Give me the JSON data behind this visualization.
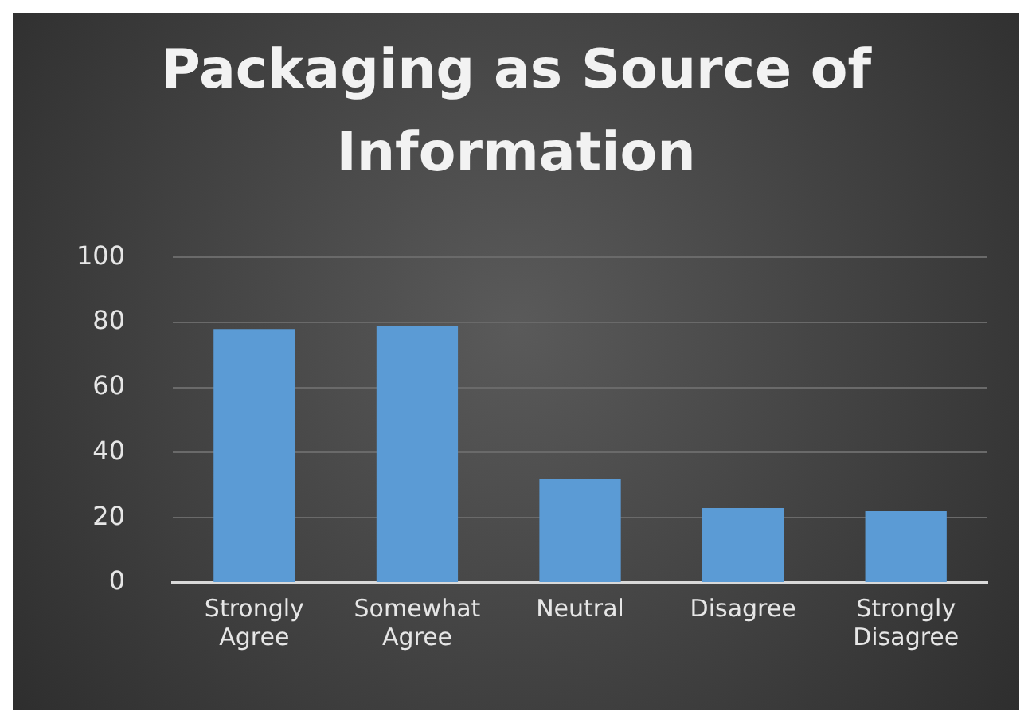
{
  "chart_data": {
    "type": "bar",
    "title": "Packaging as Source of Information",
    "categories": [
      "Strongly Agree",
      "Somewhat Agree",
      "Neutral",
      "Disagree",
      "Strongly Disagree"
    ],
    "values": [
      78,
      79,
      32,
      23,
      22
    ],
    "color": "#5b9bd5",
    "ylim": [
      0,
      100
    ],
    "yticks": [
      0,
      20,
      40,
      60,
      80,
      100
    ],
    "grid": "y"
  }
}
